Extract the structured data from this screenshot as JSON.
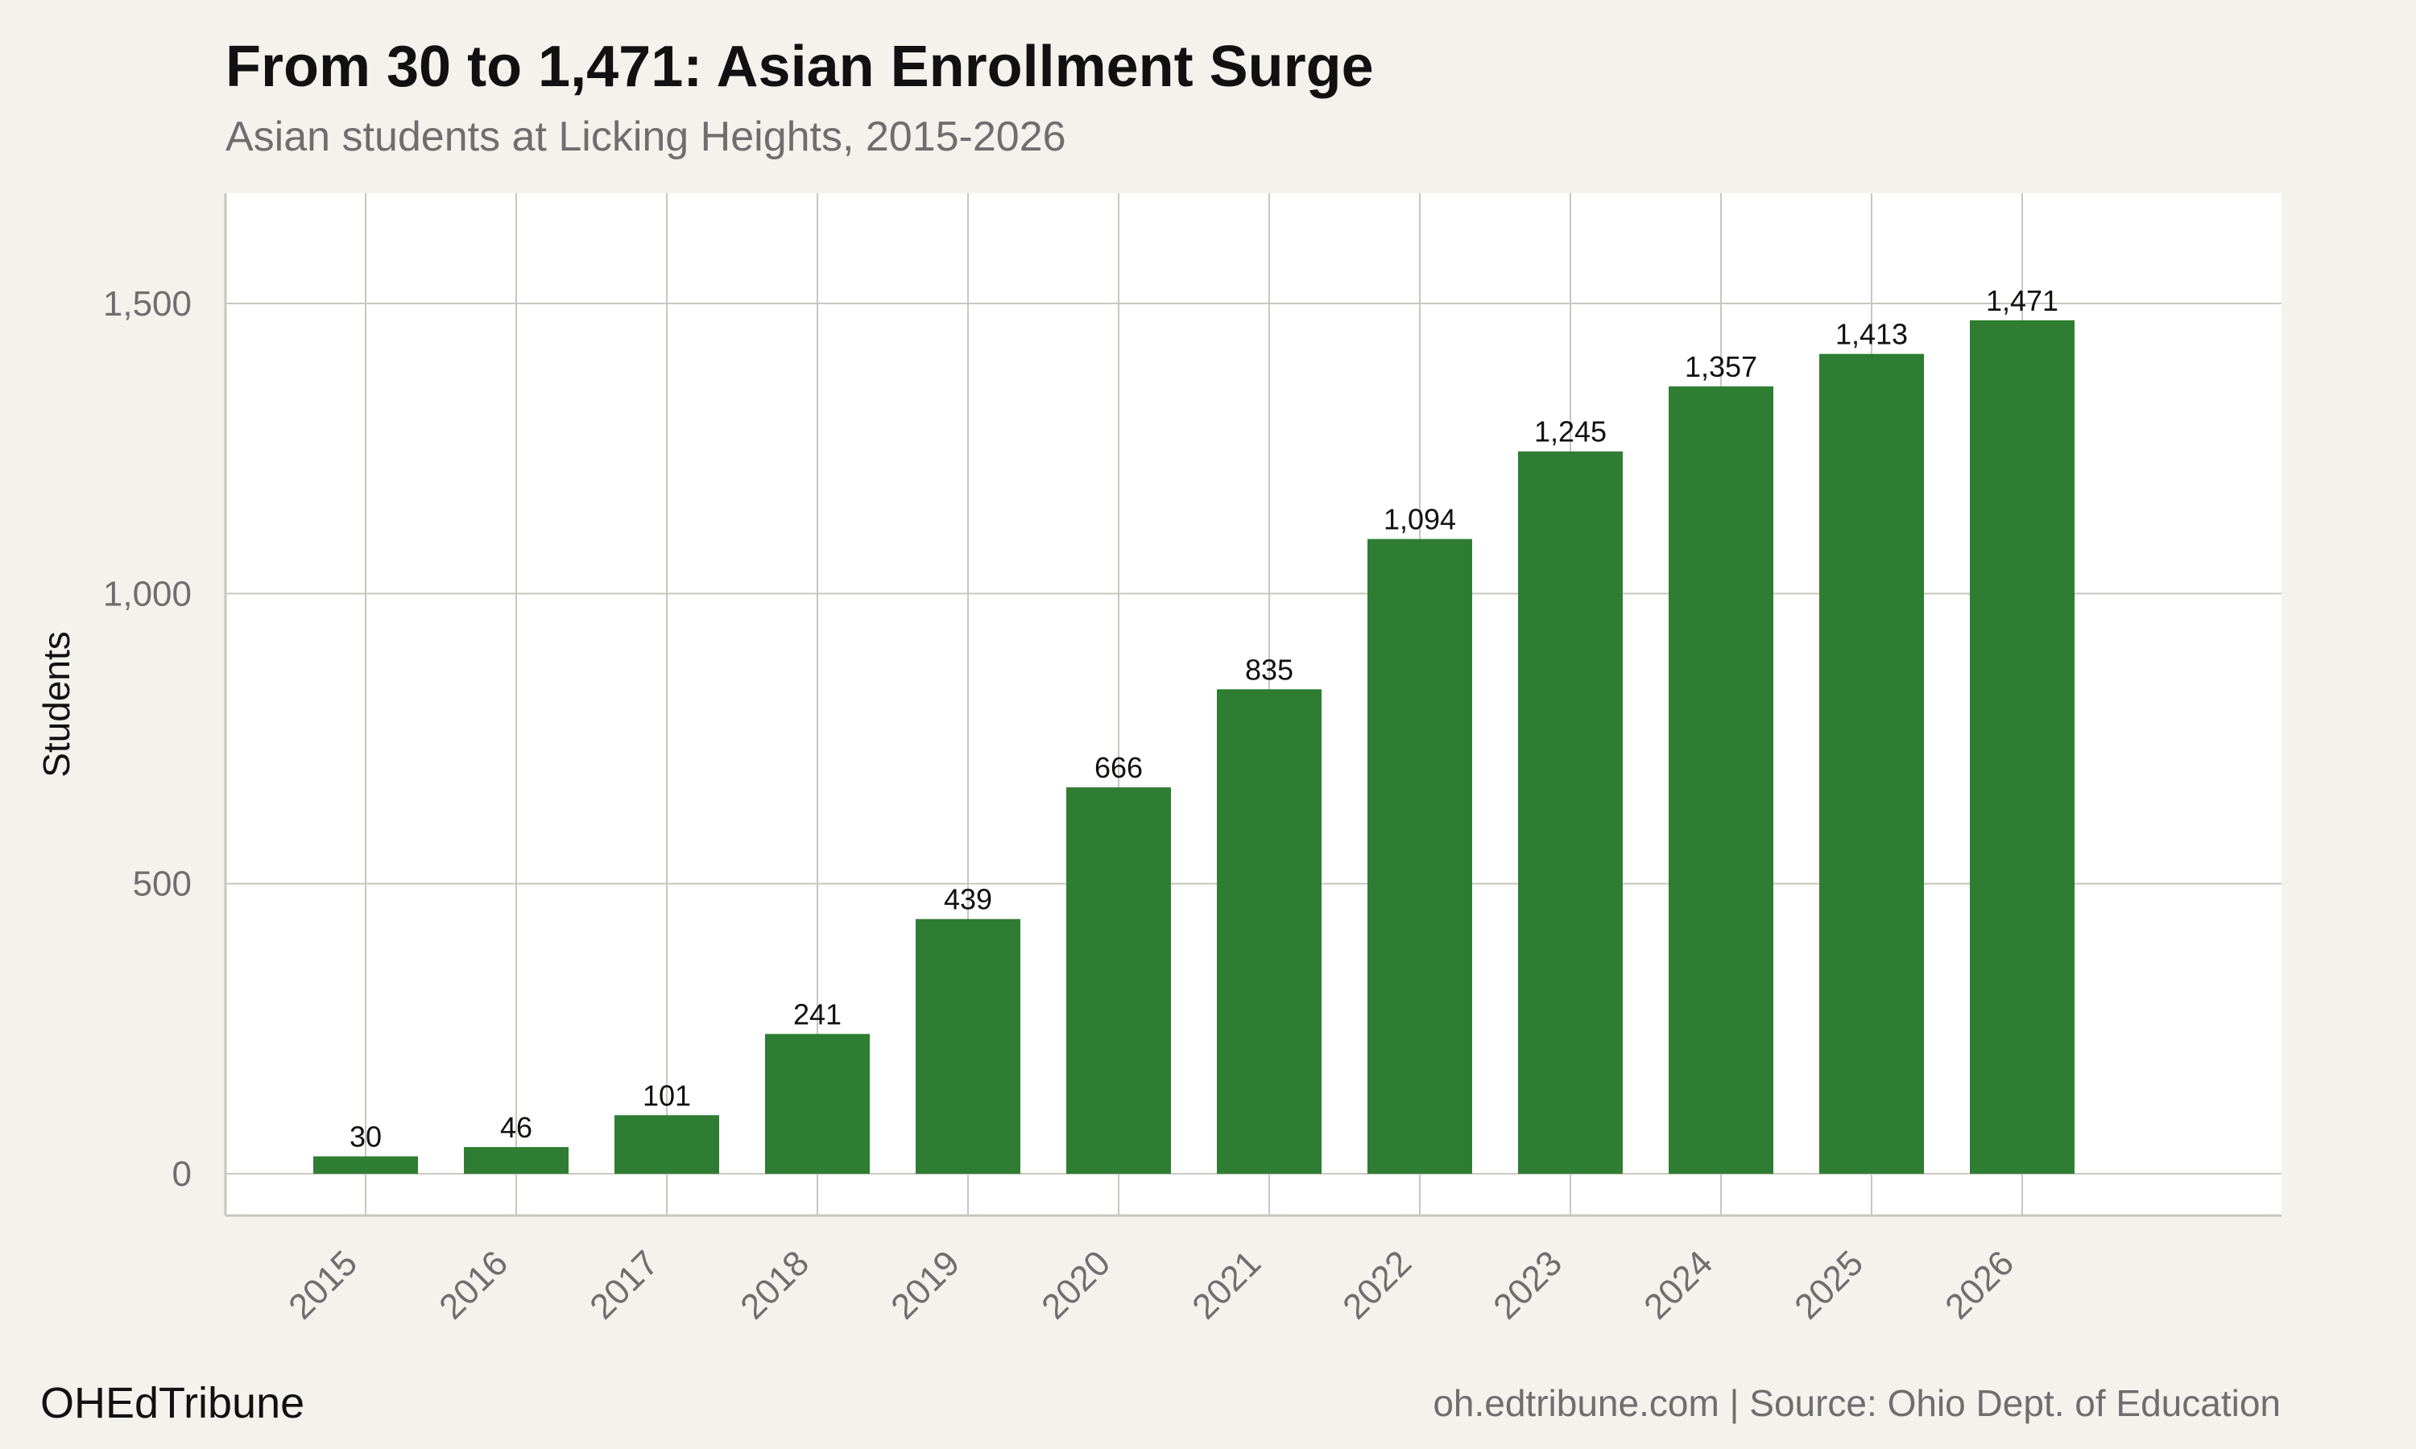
{
  "colors": {
    "bar": "#2e7d32",
    "background": "#f4f2ed",
    "panel": "#ffffff",
    "grid": "#c8c6bf",
    "title": "#111111",
    "subtitle": "#6e6e6e"
  },
  "footer": {
    "brand": "OHEdTribune",
    "source": "oh.edtribune.com | Source: Ohio Dept. of Education"
  },
  "chart_data": {
    "type": "bar",
    "title": "From 30 to 1,471: Asian Enrollment Surge",
    "subtitle": "Asian students at Licking Heights, 2015-2026",
    "xlabel": "",
    "ylabel": "Students",
    "categories": [
      "2015",
      "2016",
      "2017",
      "2018",
      "2019",
      "2020",
      "2021",
      "2022",
      "2023",
      "2024",
      "2025",
      "2026"
    ],
    "values": [
      30,
      46,
      101,
      241,
      439,
      666,
      835,
      1094,
      1245,
      1357,
      1413,
      1471
    ],
    "value_labels": [
      "30",
      "46",
      "101",
      "241",
      "439",
      "666",
      "835",
      "1,094",
      "1,245",
      "1,357",
      "1,413",
      "1,471"
    ],
    "ylim": [
      -72,
      1690
    ],
    "yticks": [
      0,
      500,
      1000,
      1500
    ],
    "ytick_labels": [
      "0",
      "500",
      "1,000",
      "1,500"
    ],
    "grid": true,
    "legend": "none"
  }
}
